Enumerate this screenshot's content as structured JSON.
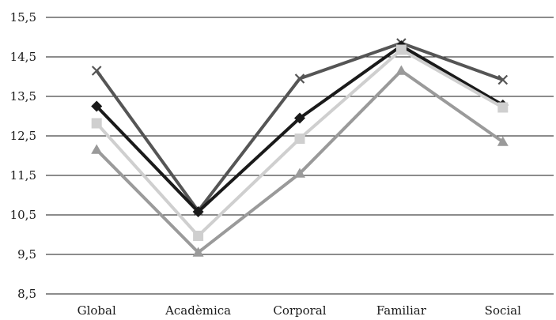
{
  "chart_data": {
    "type": "line",
    "categories": [
      "Global",
      "Acadèmica",
      "Corporal",
      "Familiar",
      "Social"
    ],
    "ylim": [
      8.5,
      15.5
    ],
    "yticks": [
      8.5,
      9.5,
      10.5,
      11.5,
      12.5,
      13.5,
      14.5,
      15.5
    ],
    "ytick_labels": [
      "8,5",
      "9,5",
      "10,5",
      "11,5",
      "12,5",
      "13,5",
      "14,5",
      "15,5"
    ],
    "grid": true,
    "legend": "none",
    "series": [
      {
        "marker": "x",
        "color": "#555555",
        "values": [
          14.15,
          10.6,
          13.95,
          14.85,
          13.92
        ]
      },
      {
        "marker": "diamond",
        "color": "#1a1a1a",
        "values": [
          13.25,
          10.58,
          12.95,
          14.78,
          13.28
        ]
      },
      {
        "marker": "square",
        "color": "#cfcfcf",
        "values": [
          12.82,
          9.97,
          12.43,
          14.68,
          13.22
        ]
      },
      {
        "marker": "triangle",
        "color": "#9a9a9a",
        "values": [
          12.15,
          9.55,
          11.55,
          14.15,
          12.35
        ]
      }
    ]
  }
}
